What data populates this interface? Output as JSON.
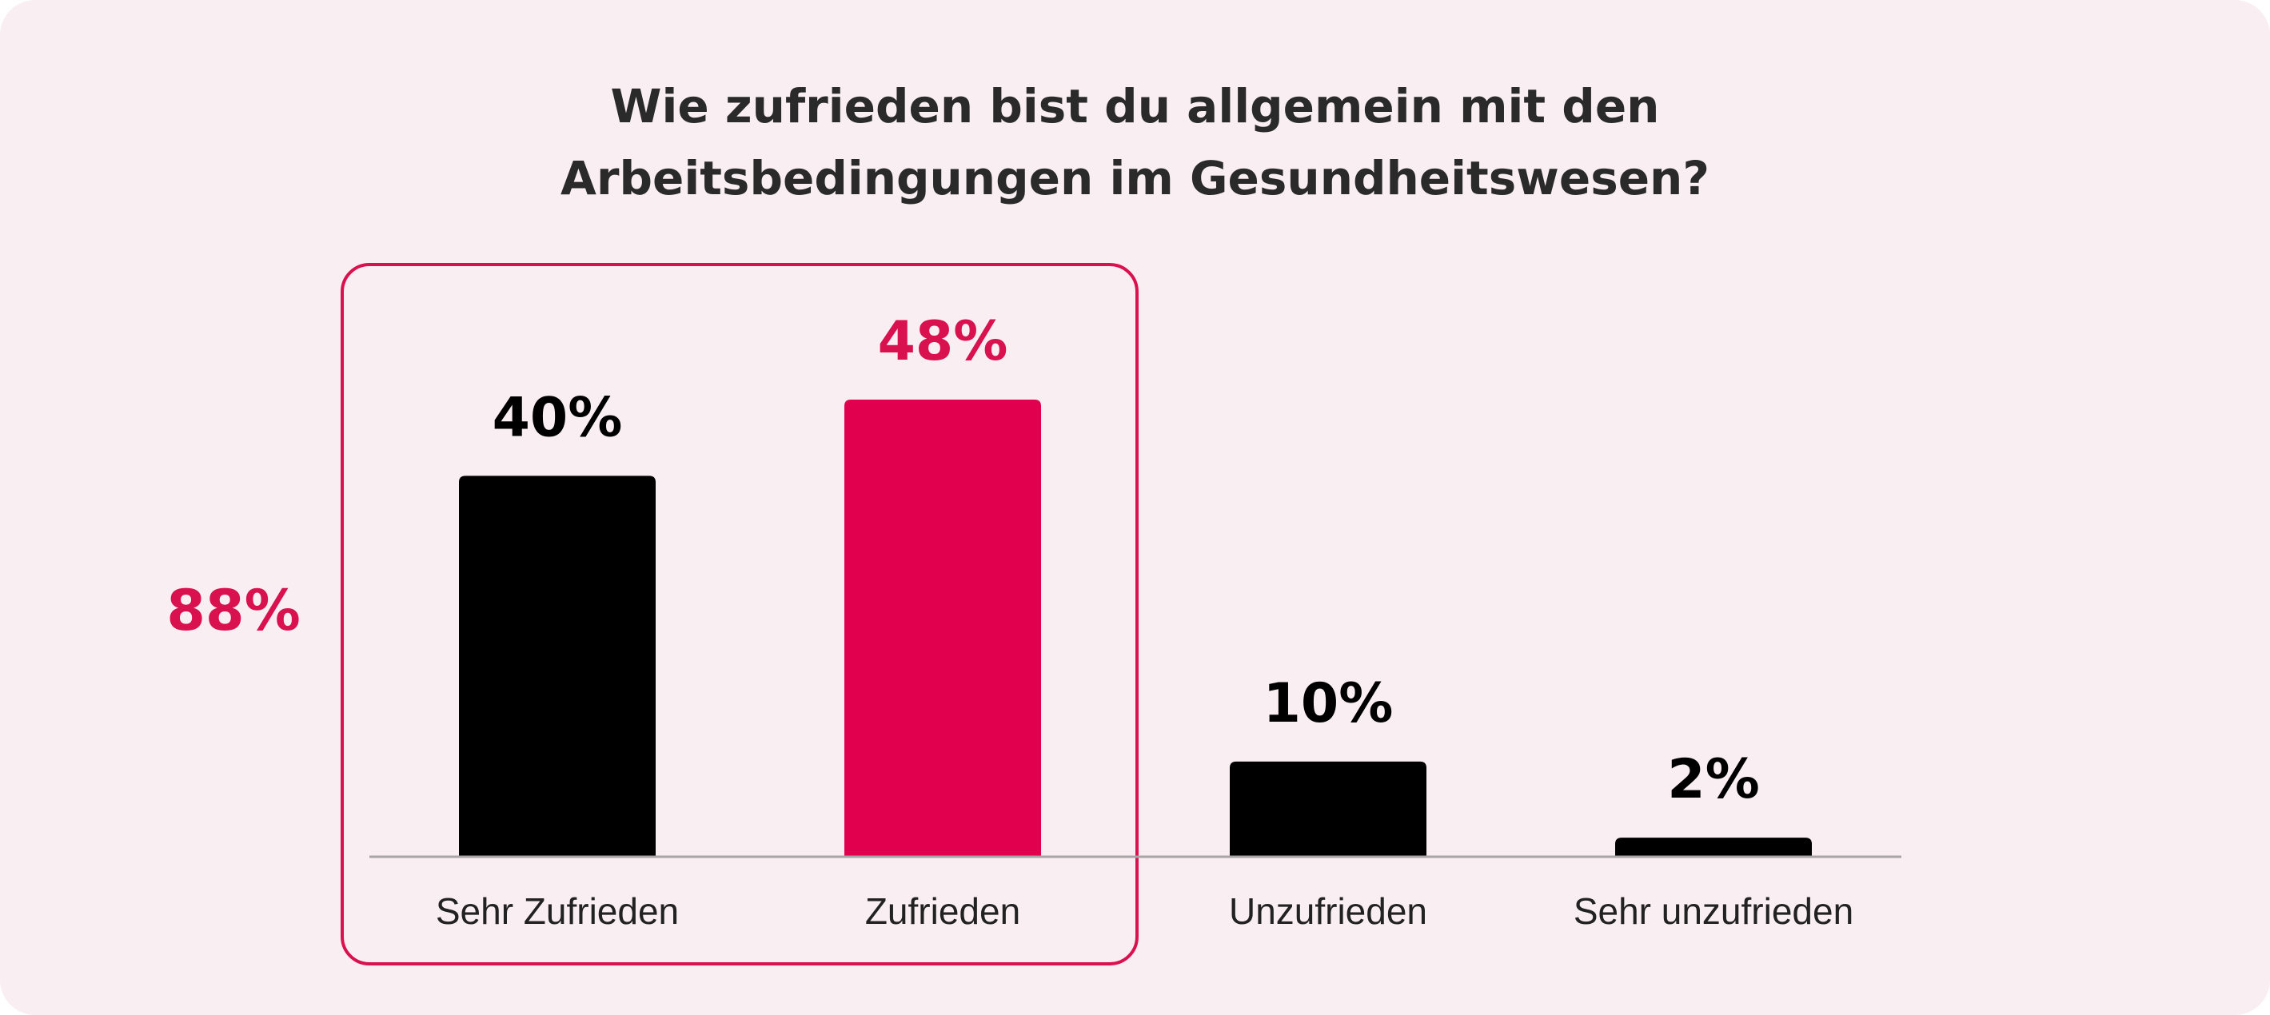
{
  "chart_data": {
    "type": "bar",
    "title": [
      "Wie zufrieden bist du allgemein mit den",
      "Arbeitsbedingungen im Gesundheitswesen?"
    ],
    "categories": [
      "Sehr Zufrieden",
      "Zufrieden",
      "Unzufrieden",
      "Sehr unzufrieden"
    ],
    "values": [
      40,
      48,
      10,
      2
    ],
    "value_labels": [
      "40%",
      "48%",
      "10%",
      "2%"
    ],
    "ylim": [
      0,
      48
    ],
    "highlight": {
      "categories": [
        "Sehr Zufrieden",
        "Zufrieden"
      ],
      "label": "88%"
    },
    "grid": false
  },
  "colors": {
    "background": "#f9eef2",
    "bar_default": "#000000",
    "bar_highlight": "#e0004d",
    "accent": "#d9114f",
    "text": "#222222",
    "baseline": "#a8a3a6"
  }
}
